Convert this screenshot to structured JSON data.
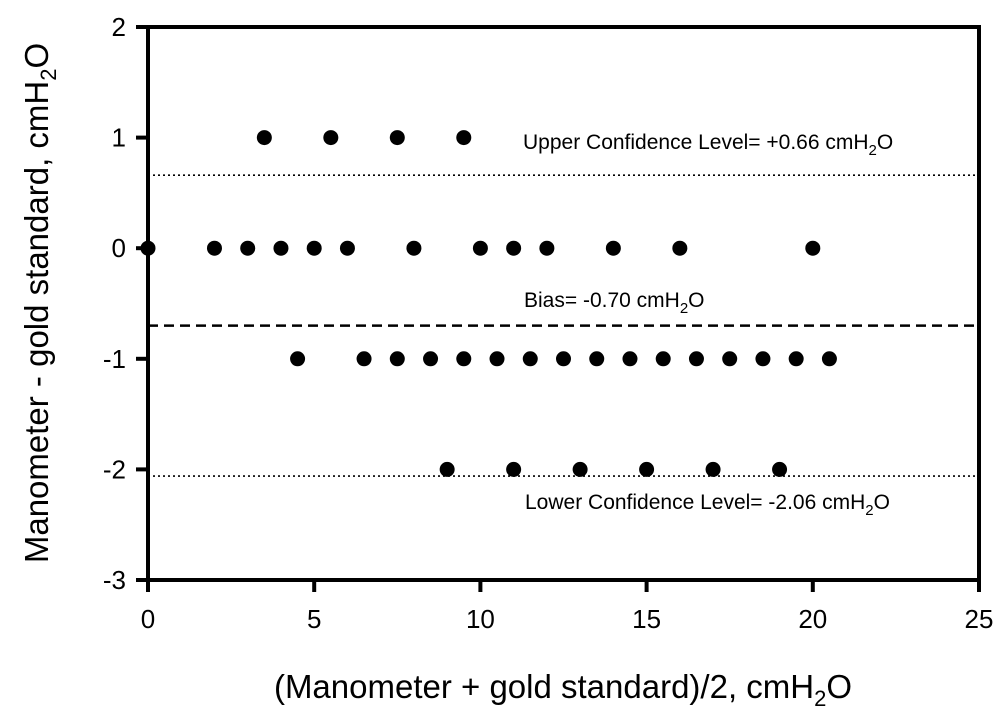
{
  "chart_data": {
    "type": "scatter",
    "title": "",
    "xlabel": {
      "before": "(Manometer + gold standard)/2, cmH",
      "sub": "2",
      "after": "O"
    },
    "ylabel": {
      "before": "Manometer - gold standard, cmH",
      "sub": "2",
      "after": "O"
    },
    "xlim": [
      0,
      25
    ],
    "ylim": [
      -3,
      2
    ],
    "x_ticks": [
      "0",
      "5",
      "10",
      "15",
      "20",
      "25"
    ],
    "y_ticks": [
      "2",
      "1",
      "0",
      "-1",
      "-2",
      "-3"
    ],
    "grid": false,
    "points": [
      {
        "x": 3.5,
        "y": 1
      },
      {
        "x": 5.5,
        "y": 1
      },
      {
        "x": 7.5,
        "y": 1
      },
      {
        "x": 9.5,
        "y": 1
      },
      {
        "x": 0,
        "y": 0
      },
      {
        "x": 2,
        "y": 0
      },
      {
        "x": 3,
        "y": 0
      },
      {
        "x": 4,
        "y": 0
      },
      {
        "x": 5,
        "y": 0
      },
      {
        "x": 6,
        "y": 0
      },
      {
        "x": 8,
        "y": 0
      },
      {
        "x": 10,
        "y": 0
      },
      {
        "x": 11,
        "y": 0
      },
      {
        "x": 12,
        "y": 0
      },
      {
        "x": 14,
        "y": 0
      },
      {
        "x": 16,
        "y": 0
      },
      {
        "x": 20,
        "y": 0
      },
      {
        "x": 4.5,
        "y": -1
      },
      {
        "x": 6.5,
        "y": -1
      },
      {
        "x": 7.5,
        "y": -1
      },
      {
        "x": 8.5,
        "y": -1
      },
      {
        "x": 9.5,
        "y": -1
      },
      {
        "x": 10.5,
        "y": -1
      },
      {
        "x": 11.5,
        "y": -1
      },
      {
        "x": 12.5,
        "y": -1
      },
      {
        "x": 13.5,
        "y": -1
      },
      {
        "x": 14.5,
        "y": -1
      },
      {
        "x": 15.5,
        "y": -1
      },
      {
        "x": 16.5,
        "y": -1
      },
      {
        "x": 17.5,
        "y": -1
      },
      {
        "x": 18.5,
        "y": -1
      },
      {
        "x": 19.5,
        "y": -1
      },
      {
        "x": 20.5,
        "y": -1
      },
      {
        "x": 9,
        "y": -2
      },
      {
        "x": 11,
        "y": -2
      },
      {
        "x": 13,
        "y": -2
      },
      {
        "x": 15,
        "y": -2
      },
      {
        "x": 17,
        "y": -2
      },
      {
        "x": 19,
        "y": -2
      }
    ],
    "reference_lines": [
      {
        "name": "upper",
        "y": 0.66,
        "style": "dotted",
        "label": {
          "before": "Upper Confidence Level= +0.66 cmH",
          "sub": "2",
          "after": "O"
        }
      },
      {
        "name": "bias",
        "y": -0.7,
        "style": "dashed",
        "label": {
          "before": "Bias= -0.70 cmH",
          "sub": "2",
          "after": "O"
        }
      },
      {
        "name": "lower",
        "y": -2.06,
        "style": "dotted",
        "label": {
          "before": "Lower Confidence Level= -2.06 cmH",
          "sub": "2",
          "after": "O"
        }
      }
    ],
    "colors": {
      "points": "#000000",
      "axes": "#000000",
      "lines": "#000000"
    }
  }
}
